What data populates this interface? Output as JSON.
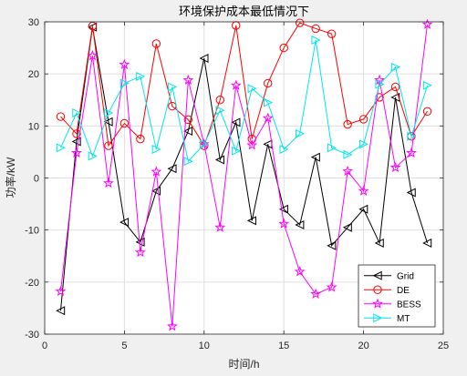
{
  "chart_data": {
    "type": "line",
    "title": "环境保护成本最低情况下",
    "xlabel": "时间/h",
    "ylabel": "功率/kW",
    "xlim": [
      0,
      25
    ],
    "ylim": [
      -30,
      30
    ],
    "xticks": [
      0,
      5,
      10,
      15,
      20,
      25
    ],
    "yticks": [
      -30,
      -20,
      -10,
      0,
      10,
      20,
      30
    ],
    "grid": true,
    "legend_position": "bottom-right",
    "x": [
      1,
      2,
      3,
      4,
      5,
      6,
      7,
      8,
      9,
      10,
      11,
      12,
      13,
      14,
      15,
      16,
      17,
      18,
      19,
      20,
      21,
      22,
      23,
      24
    ],
    "series": [
      {
        "name": "Grid",
        "color": "#000000",
        "marker": "triangle-left",
        "values": [
          -25.5,
          7,
          29,
          10.8,
          -8.5,
          -12.3,
          -2.5,
          1.8,
          9,
          23,
          3.5,
          10.7,
          -8.2,
          6.5,
          -6,
          -9,
          4,
          -13,
          -9.5,
          -6,
          -12.5,
          15.5,
          -2.8,
          -12.5
        ]
      },
      {
        "name": "DE",
        "color": "#ff0000",
        "marker": "circle",
        "values": [
          11.8,
          8.5,
          29.2,
          6.2,
          10.5,
          7.5,
          25.8,
          13.8,
          11.2,
          6.2,
          15,
          29.3,
          7.5,
          18.2,
          25,
          29.8,
          28.7,
          27.7,
          10.3,
          11.3,
          15.5,
          17.5,
          8,
          12.8
        ]
      },
      {
        "name": "BESS",
        "color": "#ff00ff",
        "marker": "star",
        "values": [
          -21.8,
          4.8,
          23.5,
          -1,
          21.8,
          -14.3,
          1.2,
          -28.5,
          18.8,
          6.5,
          -9.5,
          17.8,
          6.3,
          11.5,
          -8.8,
          -18,
          -22.3,
          -21,
          1.3,
          -2.5,
          18.8,
          2,
          4.8,
          29.5
        ]
      },
      {
        "name": "MT",
        "color": "#00e5ee",
        "marker": "triangle-right",
        "values": [
          5.8,
          12.5,
          4.2,
          12.5,
          18.2,
          19.5,
          5.5,
          17.5,
          3.2,
          6.5,
          13,
          5.2,
          17.2,
          14.5,
          5.5,
          8.5,
          26.5,
          5.8,
          4.5,
          6.5,
          18,
          21.3,
          8,
          17.8
        ]
      }
    ]
  }
}
